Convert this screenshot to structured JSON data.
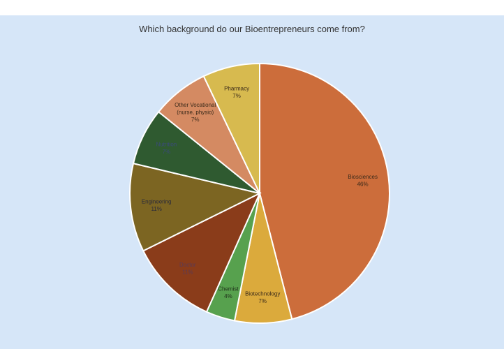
{
  "chart_data": {
    "type": "pie",
    "title": "Which background do our Bioentrepreneurs come from?",
    "start_angle_deg": 0,
    "direction": "clockwise",
    "slices": [
      {
        "name": "Biosciences",
        "label_lines": [
          "Biosciences"
        ],
        "value": 46,
        "pct_label": "46%",
        "color": "#cc6d3b",
        "label_color": "#3a2a1a"
      },
      {
        "name": "Biotechnology",
        "label_lines": [
          "Biotechnology"
        ],
        "value": 7.1,
        "pct_label": "7%",
        "color": "#dbaa3c",
        "label_color": "#3a2a1a"
      },
      {
        "name": "Chemist",
        "label_lines": [
          "Chemist"
        ],
        "value": 3.6,
        "pct_label": "4%",
        "color": "#57a14e",
        "label_color": "#1f2f1a"
      },
      {
        "name": "Doctor",
        "label_lines": [
          "Doctor"
        ],
        "value": 11,
        "pct_label": "11%",
        "color": "#8a3c1a",
        "label_color": "#5a3a55"
      },
      {
        "name": "Engineering",
        "label_lines": [
          "Engineering"
        ],
        "value": 11,
        "pct_label": "11%",
        "color": "#7c6522",
        "label_color": "#2a2a3a"
      },
      {
        "name": "Nutrition",
        "label_lines": [
          "Nutrition"
        ],
        "value": 7.1,
        "pct_label": "7%",
        "color": "#2f5a30",
        "label_color": "#3a4a7a"
      },
      {
        "name": "Other Vocational (nurse, physio)",
        "label_lines": [
          "Other Vocational",
          "(nurse, physio)"
        ],
        "value": 7.1,
        "pct_label": "7%",
        "color": "#d48a62",
        "label_color": "#3a2a1a"
      },
      {
        "name": "Pharmacy",
        "label_lines": [
          "Pharmacy"
        ],
        "value": 7.1,
        "pct_label": "7%",
        "color": "#d7ba4f",
        "label_color": "#3a2a1a"
      }
    ]
  }
}
